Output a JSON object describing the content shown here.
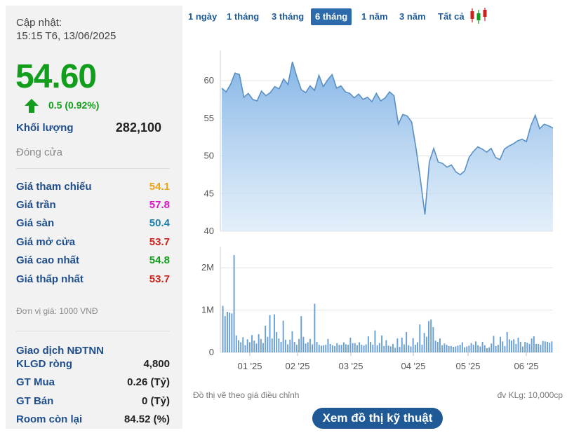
{
  "left_panel": {
    "update_label": "Cập nhật:",
    "update_time": "15:15 T6, 13/06/2025",
    "price": "54.60",
    "change": "0.5 (0.92%)",
    "volume_label": "Khối lượng",
    "volume_value": "282,100",
    "close_label": "Đóng cửa",
    "price_rows": [
      {
        "label": "Giá tham chiếu",
        "value": "54.1",
        "color": "#e8a317"
      },
      {
        "label": "Giá trần",
        "value": "57.8",
        "color": "#d915c7"
      },
      {
        "label": "Giá sàn",
        "value": "50.4",
        "color": "#1c7ea8"
      },
      {
        "label": "Giá mở cửa",
        "value": "53.7",
        "color": "#c9231e"
      },
      {
        "label": "Giá cao nhất",
        "value": "54.8",
        "color": "#129e1c"
      },
      {
        "label": "Giá thấp nhất",
        "value": "53.7",
        "color": "#c9231e"
      }
    ],
    "unit_note": "Đơn vị giá: 1000 VNĐ",
    "foreign_title": "Giao dịch NĐTNN",
    "foreign_rows": [
      {
        "label": "KLGD ròng",
        "value": "4,800"
      },
      {
        "label": "GT Mua",
        "value": "0.26 (Tỷ)"
      },
      {
        "label": "GT Bán",
        "value": "0 (Tỷ)"
      },
      {
        "label": "Room còn lại",
        "value": "84.52 (%)"
      }
    ]
  },
  "tabs": [
    {
      "label": "1 ngày",
      "active": false
    },
    {
      "label": "1 tháng",
      "active": false
    },
    {
      "label": "3 tháng",
      "active": false
    },
    {
      "label": "6 tháng",
      "active": true
    },
    {
      "label": "1 năm",
      "active": false
    },
    {
      "label": "3 năm",
      "active": false
    },
    {
      "label": "Tất cả",
      "active": false
    }
  ],
  "icons": {
    "price_change": "up-arrow-icon",
    "chart_type": "candlestick-icon"
  },
  "colors": {
    "up": "#129e1c",
    "accent": "#1f5a96",
    "area_fill": "#8fbde9",
    "line": "#5a8fc4",
    "volume_bar": "#6a9fd6"
  },
  "notes": {
    "adjusted": "Đồ thị vẽ theo giá điều chỉnh",
    "volume_unit": "đv KLg: 10,000cp"
  },
  "button_label": "Xem đồ thị kỹ thuật",
  "chart_data": [
    {
      "type": "area",
      "ylim": [
        40,
        64
      ],
      "yticks": [
        "60",
        "55",
        "50",
        "45",
        "40"
      ],
      "xtick_labels": [
        "01 '25",
        "02 '25",
        "03 '25",
        "04 '25",
        "05 '25",
        "06 '25"
      ],
      "series": [
        {
          "values": [
            59.0,
            58.5,
            59.5,
            61.0,
            60.8,
            57.8,
            58.3,
            57.5,
            57.3,
            58.6,
            58.0,
            58.4,
            59.2,
            58.9,
            60.2,
            59.5,
            62.5,
            60.5,
            58.8,
            58.4,
            59.3,
            58.7,
            60.7,
            59.2,
            60.1,
            60.8,
            59.0,
            59.3,
            58.5,
            58.3,
            57.7,
            58.2,
            57.5,
            57.8,
            57.2,
            58.3,
            57.3,
            57.7,
            58.5,
            58.0,
            54.2,
            55.5,
            55.3,
            54.5,
            51.0,
            46.8,
            42.2,
            49.2,
            51.0,
            49.2,
            49.0,
            48.5,
            48.8,
            47.9,
            47.5,
            48.0,
            49.8,
            50.6,
            51.2,
            50.9,
            50.5,
            51.0,
            49.8,
            49.5,
            50.9,
            51.3,
            51.6,
            52.0,
            52.2,
            51.9,
            54.0,
            55.4,
            53.6,
            54.2,
            54.0,
            53.7
          ]
        }
      ]
    },
    {
      "type": "bar",
      "ylim": [
        0,
        2500000
      ],
      "yticks": [
        "2M",
        "1M",
        "0"
      ],
      "xtick_labels": [
        "01 '25",
        "02 '25",
        "03 '25",
        "04 '25",
        "05 '25",
        "06 '25"
      ],
      "series": [
        {
          "values": [
            1100000,
            860000,
            960000,
            940000,
            920000,
            2300000,
            400000,
            290000,
            240000,
            360000,
            170000,
            310000,
            240000,
            410000,
            280000,
            210000,
            430000,
            320000,
            220000,
            630000,
            370000,
            880000,
            330000,
            900000,
            480000,
            330000,
            250000,
            750000,
            300000,
            190000,
            300000,
            500000,
            250000,
            180000,
            320000,
            860000,
            370000,
            210000,
            240000,
            320000,
            190000,
            1150000,
            250000,
            180000,
            160000,
            170000,
            180000,
            320000,
            200000,
            170000,
            150000,
            220000,
            180000,
            180000,
            240000,
            190000,
            180000,
            350000,
            220000,
            220000,
            170000,
            240000,
            180000,
            160000,
            190000,
            380000,
            250000,
            180000,
            520000,
            170000,
            220000,
            400000,
            150000,
            290000,
            160000,
            140000,
            200000,
            110000,
            330000,
            130000,
            350000,
            190000,
            480000,
            170000,
            140000,
            340000,
            180000,
            240000,
            660000,
            180000,
            460000,
            370000,
            740000,
            780000,
            600000,
            280000,
            250000,
            330000,
            170000,
            210000,
            180000,
            150000,
            150000,
            130000,
            140000,
            160000,
            180000,
            240000,
            120000,
            140000,
            160000,
            220000,
            180000,
            260000,
            170000,
            140000,
            250000,
            170000,
            100000,
            120000,
            210000,
            390000,
            150000,
            180000,
            370000,
            260000,
            150000,
            480000,
            310000,
            280000,
            310000,
            200000,
            350000,
            250000,
            140000,
            250000,
            230000,
            200000,
            330000,
            380000,
            200000,
            200000,
            180000,
            270000,
            260000,
            250000,
            230000,
            260000
          ]
        }
      ]
    }
  ]
}
